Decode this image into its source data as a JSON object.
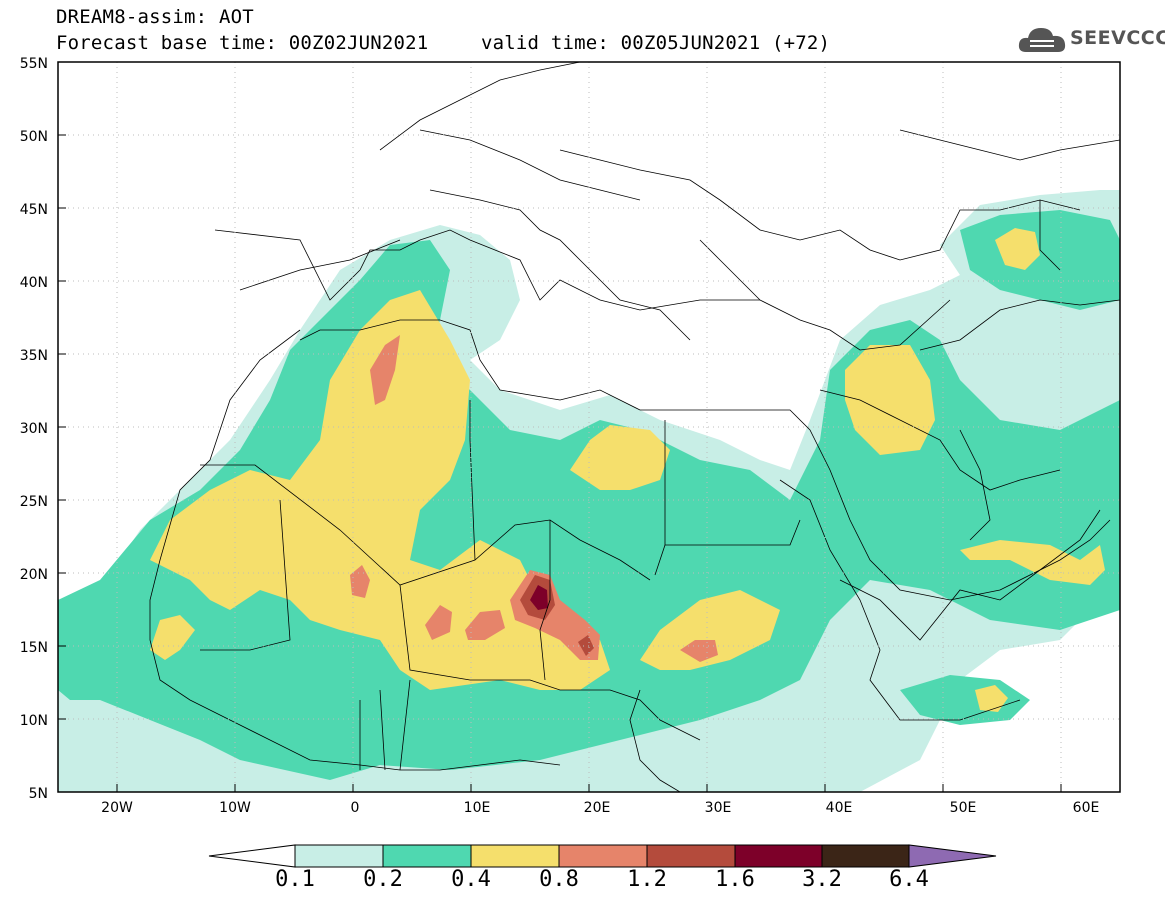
{
  "header": {
    "line1": "DREAM8-assim: AOT",
    "base": "Forecast base time: 00Z02JUN2021",
    "valid": "valid time: 00Z05JUN2021 (+72)"
  },
  "logo": {
    "text": "SEEVCCC",
    "icon": "cloud-logo-icon"
  },
  "map": {
    "projection": "equirectangular",
    "lon_range": [
      -25,
      65
    ],
    "lat_range": [
      5,
      55
    ],
    "x_ticks": [
      "20W",
      "10W",
      "0",
      "10E",
      "20E",
      "30E",
      "40E",
      "50E",
      "60E"
    ],
    "y_ticks": [
      "55N",
      "50N",
      "45N",
      "40N",
      "35N",
      "30N",
      "25N",
      "20N",
      "15N",
      "10N",
      "5N"
    ],
    "gridlines": true,
    "colors": {
      "0.1-0.2": "#c8eee6",
      "0.2-0.4": "#4fd8b0",
      "0.4-0.8": "#f5df6c",
      "0.8-1.2": "#e6846a",
      "1.2-1.6": "#b44b3c",
      "1.6-3.2": "#7d0029",
      "3.2-6.4": "#3b2517",
      ">6.4": "#8e6ab2"
    }
  },
  "colorbar": {
    "labels": [
      "0.1",
      "0.2",
      "0.4",
      "0.8",
      "1.2",
      "1.6",
      "3.2",
      "6.4"
    ],
    "colors": [
      "#c8eee6",
      "#4fd8b0",
      "#f5df6c",
      "#e6846a",
      "#b44b3c",
      "#7d0029",
      "#3b2517"
    ],
    "over_color": "#8e6ab2",
    "under_color": "#ffffff"
  }
}
